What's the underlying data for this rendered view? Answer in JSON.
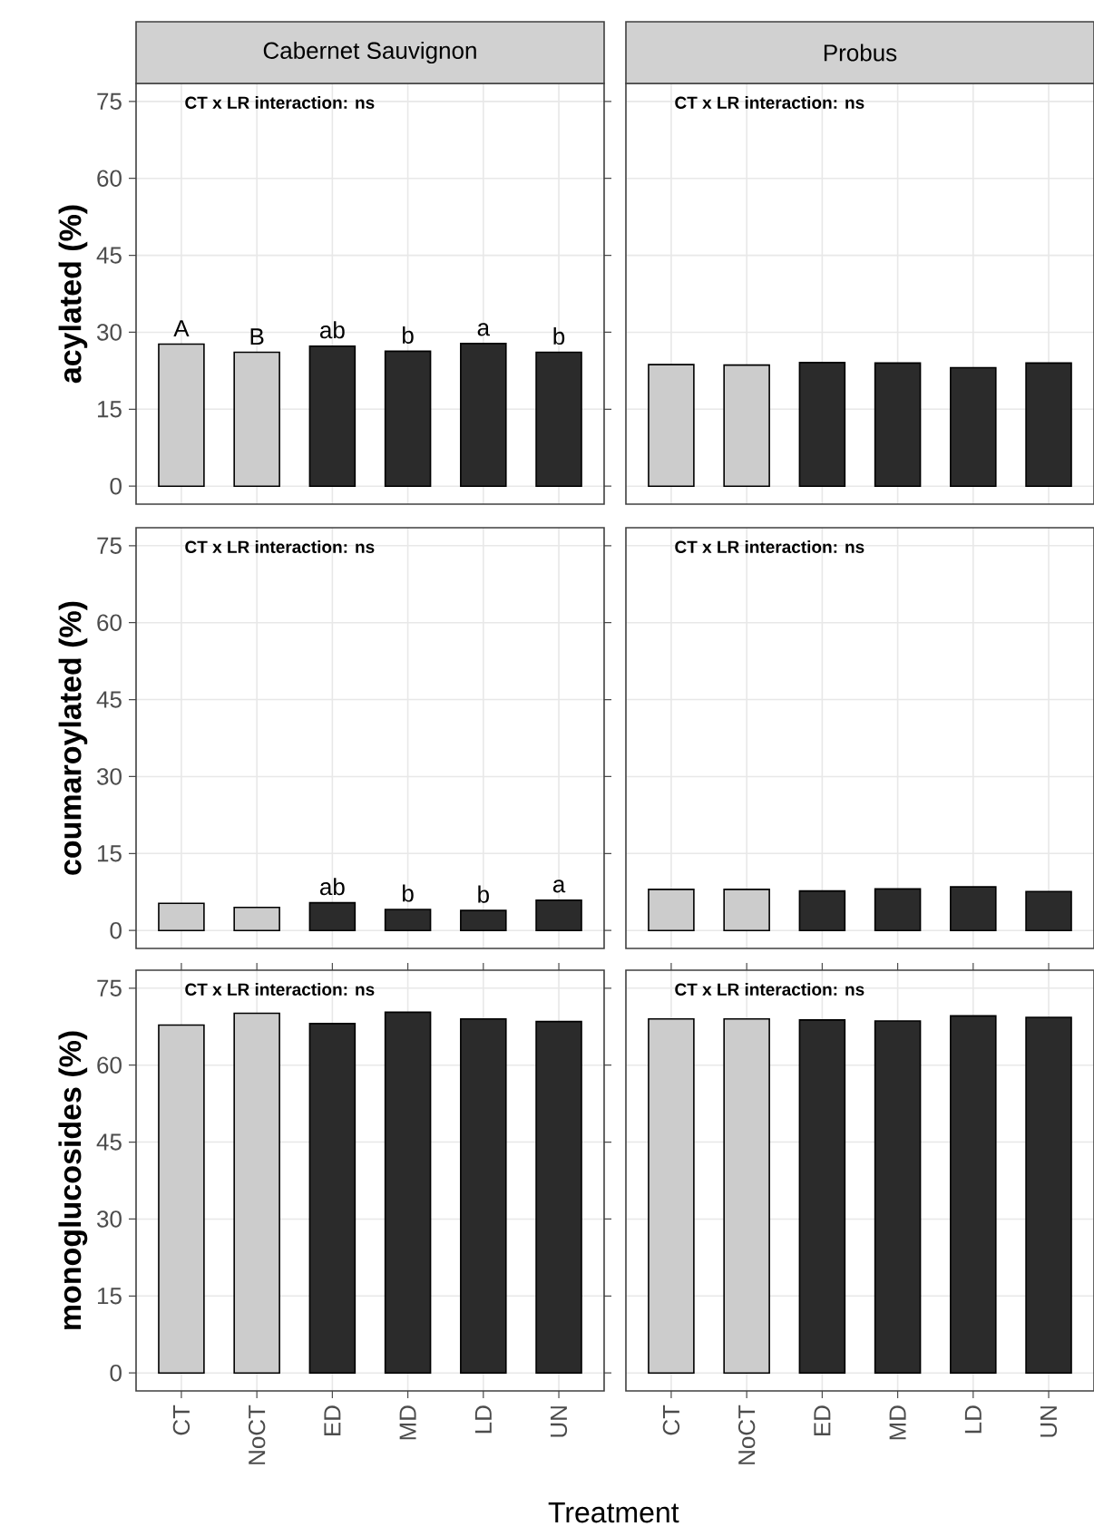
{
  "chart_data": [
    {
      "type": "bar",
      "title": "Cabernet Sauvignon",
      "ylabel": "acylated (%)",
      "categories": [
        "CT",
        "NoCT",
        "ED",
        "MD",
        "LD",
        "UN"
      ],
      "values": [
        27.7,
        26.1,
        27.3,
        26.3,
        27.8,
        26.1
      ],
      "colors": [
        "#cccccc",
        "#cccccc",
        "#2b2b2b",
        "#2b2b2b",
        "#2b2b2b",
        "#2b2b2b"
      ],
      "ylim": [
        -3.5,
        78.5
      ],
      "yticks": [
        0,
        15,
        30,
        45,
        60,
        75
      ],
      "grid": true,
      "tick_labels": "y",
      "annotations": [
        "CT x LR interaction: ns",
        {
          "text": "A",
          "x": "CT",
          "y": 27.7
        },
        {
          "text": "B",
          "x": "NoCT",
          "y": 26.1
        },
        {
          "text": "ab",
          "x": "ED",
          "y": 27.3
        },
        {
          "text": "b",
          "x": "MD",
          "y": 26.3
        },
        {
          "text": "a",
          "x": "LD",
          "y": 27.8
        },
        {
          "text": "b",
          "x": "UN",
          "y": 26.1
        }
      ]
    },
    {
      "type": "bar",
      "title": "Probus",
      "categories": [
        "CT",
        "NoCT",
        "ED",
        "MD",
        "LD",
        "UN"
      ],
      "values": [
        23.7,
        23.6,
        24.1,
        24.0,
        23.1,
        24.0
      ],
      "colors": [
        "#cccccc",
        "#cccccc",
        "#2b2b2b",
        "#2b2b2b",
        "#2b2b2b",
        "#2b2b2b"
      ],
      "ylim": [
        -3.5,
        78.5
      ],
      "yticks": [
        0,
        15,
        30,
        45,
        60,
        75
      ],
      "grid": true,
      "tick_labels": false,
      "annotations": [
        "CT x LR interaction: ns"
      ]
    },
    {
      "type": "bar",
      "ylabel": "coumaroylated (%)",
      "categories": [
        "CT",
        "NoCT",
        "ED",
        "MD",
        "LD",
        "UN"
      ],
      "values": [
        5.3,
        4.5,
        5.4,
        4.1,
        3.9,
        5.9
      ],
      "colors": [
        "#cccccc",
        "#cccccc",
        "#2b2b2b",
        "#2b2b2b",
        "#2b2b2b",
        "#2b2b2b"
      ],
      "ylim": [
        -3.5,
        78.5
      ],
      "yticks": [
        0,
        15,
        30,
        45,
        60,
        75
      ],
      "grid": true,
      "tick_labels": "y",
      "annotations": [
        "CT x LR interaction: ns",
        {
          "text": "ab",
          "x": "ED",
          "y": 5.4
        },
        {
          "text": "b",
          "x": "MD",
          "y": 4.1
        },
        {
          "text": "b",
          "x": "LD",
          "y": 3.9
        },
        {
          "text": "a",
          "x": "UN",
          "y": 5.9
        }
      ]
    },
    {
      "type": "bar",
      "categories": [
        "CT",
        "NoCT",
        "ED",
        "MD",
        "LD",
        "UN"
      ],
      "values": [
        8.0,
        8.0,
        7.7,
        8.1,
        8.5,
        7.6
      ],
      "colors": [
        "#cccccc",
        "#cccccc",
        "#2b2b2b",
        "#2b2b2b",
        "#2b2b2b",
        "#2b2b2b"
      ],
      "ylim": [
        -3.5,
        78.5
      ],
      "yticks": [
        0,
        15,
        30,
        45,
        60,
        75
      ],
      "grid": true,
      "tick_labels": false,
      "annotations": [
        "CT x LR interaction: ns"
      ]
    },
    {
      "type": "bar",
      "ylabel": "monoglucosides (%)",
      "xlabel": "Treatment",
      "categories": [
        "CT",
        "NoCT",
        "ED",
        "MD",
        "LD",
        "UN"
      ],
      "values": [
        67.8,
        70.1,
        68.1,
        70.3,
        69.0,
        68.5
      ],
      "colors": [
        "#cccccc",
        "#cccccc",
        "#2b2b2b",
        "#2b2b2b",
        "#2b2b2b",
        "#2b2b2b"
      ],
      "ylim": [
        -3.5,
        78.5
      ],
      "yticks": [
        0,
        15,
        30,
        45,
        60,
        75
      ],
      "grid": true,
      "annotations": [
        "CT x LR interaction: ns"
      ]
    },
    {
      "type": "bar",
      "categories": [
        "CT",
        "NoCT",
        "ED",
        "MD",
        "LD",
        "UN"
      ],
      "values": [
        69.0,
        69.0,
        68.8,
        68.6,
        69.6,
        69.3
      ],
      "colors": [
        "#cccccc",
        "#cccccc",
        "#2b2b2b",
        "#2b2b2b",
        "#2b2b2b",
        "#2b2b2b"
      ],
      "ylim": [
        -3.5,
        78.5
      ],
      "yticks": [
        0,
        15,
        30,
        45,
        60,
        75
      ],
      "grid": true,
      "tick_labels": "x",
      "annotations": [
        "CT x LR interaction: ns"
      ]
    }
  ]
}
